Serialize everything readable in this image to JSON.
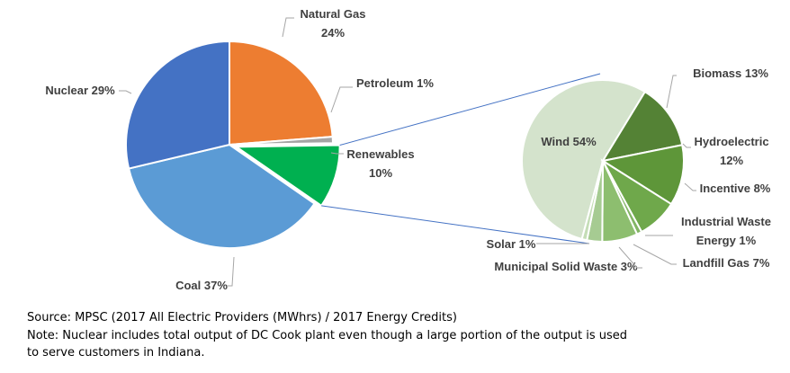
{
  "chart_data": [
    {
      "type": "pie",
      "categories": [
        "Natural Gas",
        "Petroleum",
        "Renewables",
        "Coal",
        "Nuclear"
      ],
      "values": [
        24,
        1,
        10,
        37,
        29
      ],
      "labels": [
        "Natural Gas",
        "24%",
        "Petroleum 1%",
        "Renewables",
        "10%",
        "Coal 37%",
        "Nuclear 29%"
      ],
      "colors": [
        "#ED7D31",
        "#A5A5A5",
        "#00B050",
        "#5B9BD5",
        "#4472C4"
      ],
      "exploded_slice": "Renewables"
    },
    {
      "type": "pie",
      "categories": [
        "Wind",
        "Biomass",
        "Hydroelectric",
        "Incentive",
        "Industrial Waste Energy",
        "Landfill Gas",
        "Municipal Solid Waste",
        "Solar"
      ],
      "values": [
        54,
        13,
        12,
        8,
        1,
        7,
        3,
        1
      ],
      "labels": [
        "Wind 54%",
        "Biomass 13%",
        "Hydroelectric",
        "12%",
        "Incentive 8%",
        "Industrial Waste",
        "Energy 1%",
        "Landfill Gas 7%",
        "Municipal Solid Waste 3%",
        "Solar 1%"
      ],
      "colors": [
        "#D4E3CC",
        "#548235",
        "#5E9639",
        "#6FA84B",
        "#83B565",
        "#8DBE6F",
        "#A6CB92",
        "#C4DDB6"
      ]
    }
  ],
  "notes": {
    "source": "Source: MPSC (2017 All Electric Providers (MWhrs) / 2017  Energy Credits)",
    "note_line1": "Note: Nuclear includes total output of DC Cook plant even though a large portion of the output is used",
    "note_line2": "to serve customers in Indiana."
  }
}
